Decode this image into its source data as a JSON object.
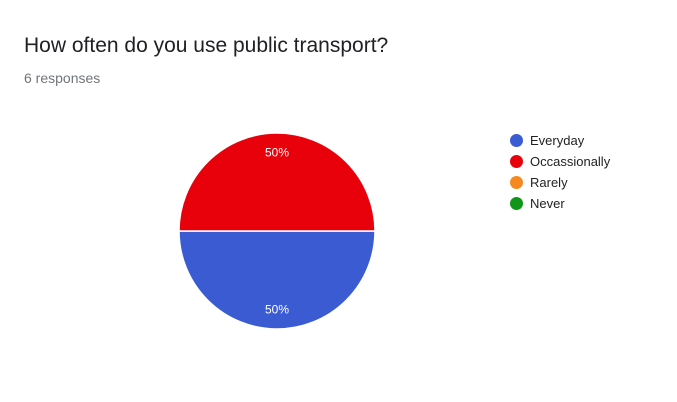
{
  "header": {
    "title": "How often do you use public transport?",
    "responses": "6 responses"
  },
  "colors": {
    "Everyday": "#3a5bd1",
    "Occassionally": "#e8000b",
    "Rarely": "#f5891f",
    "Never": "#109618"
  },
  "chart_data": {
    "type": "pie",
    "categories": [
      "Everyday",
      "Occassionally",
      "Rarely",
      "Never"
    ],
    "values": [
      50,
      50,
      0,
      0
    ],
    "data_labels": [
      "50%",
      "50%",
      "",
      ""
    ],
    "legend_position": "right"
  }
}
